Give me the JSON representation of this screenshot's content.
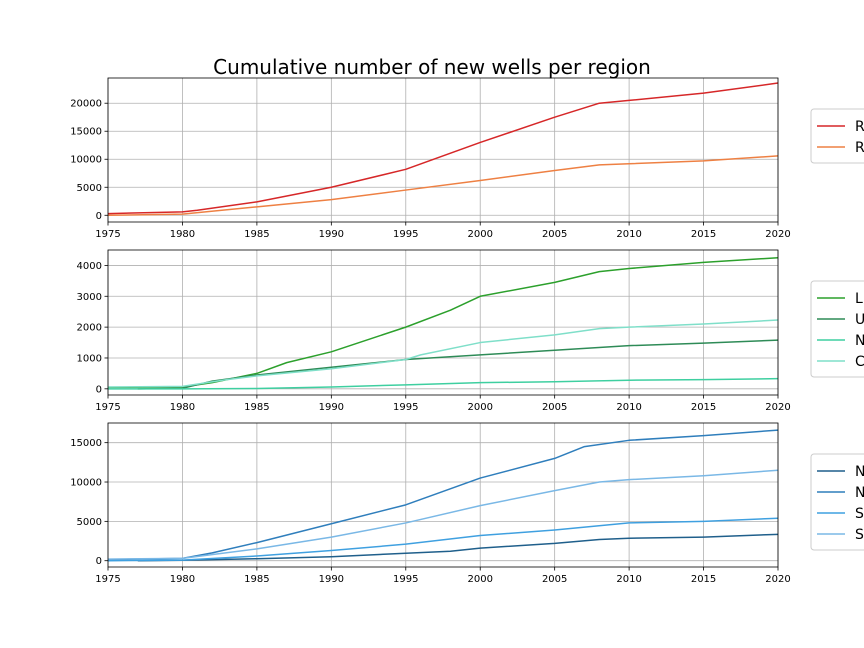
{
  "title": "Cumulative number of new wells per region",
  "chart_data": [
    {
      "type": "line",
      "xlim": [
        1975,
        2020
      ],
      "ylim": [
        -1200,
        24500
      ],
      "xticks": [
        1975,
        1980,
        1985,
        1990,
        1995,
        2000,
        2005,
        2010,
        2015,
        2020
      ],
      "yticks": [
        0,
        5000,
        10000,
        15000,
        20000
      ],
      "grid": true,
      "legend_position": "right, partially cut off",
      "series": [
        {
          "name": "R",
          "color": "#d62728",
          "x": [
            1975,
            1980,
            1981,
            1985,
            1990,
            1995,
            2000,
            2005,
            2008,
            2010,
            2015,
            2020
          ],
          "y": [
            300,
            600,
            900,
            2400,
            5000,
            8200,
            13000,
            17500,
            20000,
            20500,
            21800,
            23600
          ]
        },
        {
          "name": "R",
          "color": "#ee8043",
          "x": [
            1975,
            1980,
            1985,
            1990,
            1995,
            2000,
            2005,
            2008,
            2010,
            2015,
            2020
          ],
          "y": [
            0,
            200,
            1500,
            2800,
            4500,
            6200,
            8000,
            9000,
            9200,
            9700,
            10600
          ]
        }
      ]
    },
    {
      "type": "line",
      "xlim": [
        1975,
        2020
      ],
      "ylim": [
        -200,
        4500
      ],
      "xticks": [
        1975,
        1980,
        1985,
        1990,
        1995,
        2000,
        2005,
        2010,
        2015,
        2020
      ],
      "yticks": [
        0,
        1000,
        2000,
        3000,
        4000
      ],
      "grid": true,
      "legend_position": "right, partially cut off",
      "series": [
        {
          "name": "L",
          "color": "#2ca02c",
          "x": [
            1975,
            1980,
            1982,
            1985,
            1987,
            1990,
            1995,
            1998,
            2000,
            2005,
            2008,
            2010,
            2015,
            2020
          ],
          "y": [
            50,
            60,
            200,
            500,
            850,
            1200,
            2000,
            2550,
            3000,
            3450,
            3800,
            3900,
            4100,
            4250
          ]
        },
        {
          "name": "U",
          "color": "#2e8b57",
          "x": [
            1977,
            1980,
            1982,
            1985,
            1990,
            1995,
            2000,
            2005,
            2010,
            2015,
            2020
          ],
          "y": [
            0,
            20,
            250,
            450,
            700,
            950,
            1100,
            1250,
            1400,
            1480,
            1580
          ]
        },
        {
          "name": "N",
          "color": "#3ecfa0",
          "x": [
            1975,
            1980,
            1985,
            1990,
            1995,
            2000,
            2005,
            2010,
            2015,
            2020
          ],
          "y": [
            0,
            0,
            10,
            60,
            130,
            200,
            230,
            280,
            300,
            330
          ]
        },
        {
          "name": "C",
          "color": "#7fdfc9",
          "x": [
            1975,
            1980,
            1983,
            1985,
            1990,
            1995,
            1996,
            2000,
            2005,
            2008,
            2010,
            2015,
            2020
          ],
          "y": [
            60,
            80,
            300,
            420,
            650,
            950,
            1100,
            1500,
            1750,
            1950,
            2000,
            2100,
            2230
          ]
        }
      ]
    },
    {
      "type": "line",
      "xlim": [
        1975,
        2020
      ],
      "ylim": [
        -800,
        17500
      ],
      "xticks": [
        1975,
        1980,
        1985,
        1990,
        1995,
        2000,
        2005,
        2010,
        2015,
        2020
      ],
      "yticks": [
        0,
        5000,
        10000,
        15000
      ],
      "grid": true,
      "legend_position": "right, partially cut off",
      "series": [
        {
          "name": "N",
          "color": "#1f5f8b",
          "x": [
            1977,
            1980,
            1985,
            1990,
            1995,
            1998,
            2000,
            2005,
            2008,
            2010,
            2015,
            2020
          ],
          "y": [
            0,
            50,
            250,
            500,
            950,
            1200,
            1600,
            2200,
            2700,
            2850,
            3000,
            3350
          ]
        },
        {
          "name": "N",
          "color": "#2f7ebc",
          "x": [
            1975,
            1980,
            1982,
            1985,
            1990,
            1995,
            2000,
            2005,
            2007,
            2010,
            2015,
            2020
          ],
          "y": [
            150,
            300,
            1000,
            2300,
            4700,
            7100,
            10500,
            13000,
            14500,
            15300,
            15900,
            16600
          ]
        },
        {
          "name": "S",
          "color": "#3fa0e0",
          "x": [
            1975,
            1980,
            1985,
            1990,
            1995,
            2000,
            2005,
            2010,
            2015,
            2020
          ],
          "y": [
            0,
            80,
            600,
            1300,
            2100,
            3200,
            3900,
            4800,
            5000,
            5400
          ]
        },
        {
          "name": "S",
          "color": "#7ab8e6",
          "x": [
            1975,
            1980,
            1985,
            1990,
            1995,
            2000,
            2005,
            2008,
            2010,
            2015,
            2020
          ],
          "y": [
            200,
            300,
            1500,
            3000,
            4800,
            7000,
            8900,
            10000,
            10300,
            10800,
            11500
          ]
        }
      ]
    }
  ]
}
